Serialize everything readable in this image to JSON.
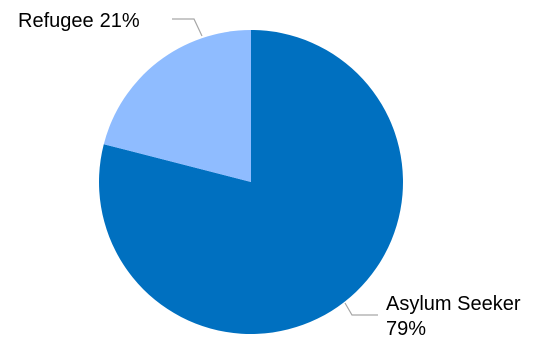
{
  "chart_data": {
    "type": "pie",
    "slices": [
      {
        "label": "Asylum Seeker",
        "value": 79,
        "display": "79%",
        "color": "#0070c0"
      },
      {
        "label": "Refugee",
        "value": 21,
        "display": "21%",
        "color": "#8fbcff"
      }
    ],
    "start": "12 o'clock",
    "direction": "clockwise",
    "legend": "none"
  }
}
